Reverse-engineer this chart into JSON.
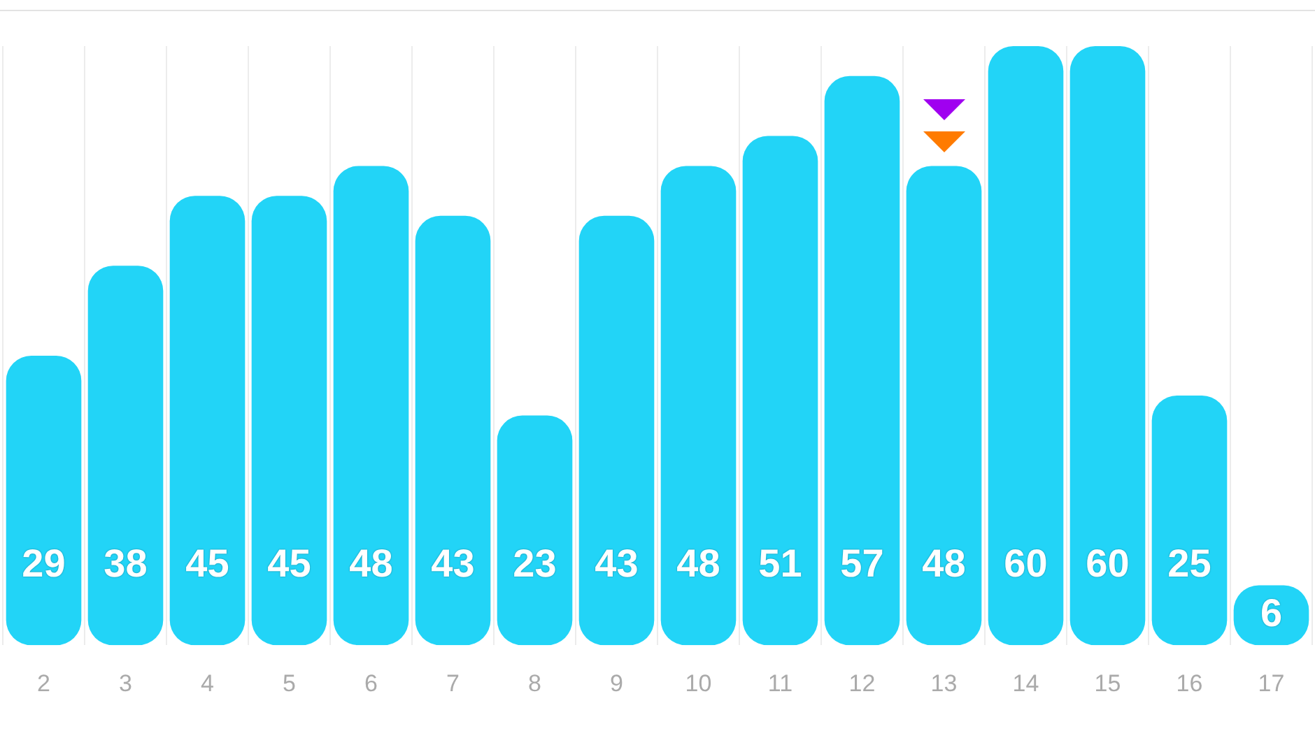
{
  "chart_data": {
    "type": "bar",
    "categories": [
      "2",
      "3",
      "4",
      "5",
      "6",
      "7",
      "8",
      "9",
      "10",
      "11",
      "12",
      "13",
      "14",
      "15",
      "16",
      "17"
    ],
    "values": [
      29,
      38,
      45,
      45,
      48,
      43,
      23,
      43,
      48,
      51,
      57,
      48,
      60,
      60,
      25,
      6
    ],
    "color": "#22d4f7",
    "data_labels": true,
    "grid": "x",
    "legend": false
  }
}
